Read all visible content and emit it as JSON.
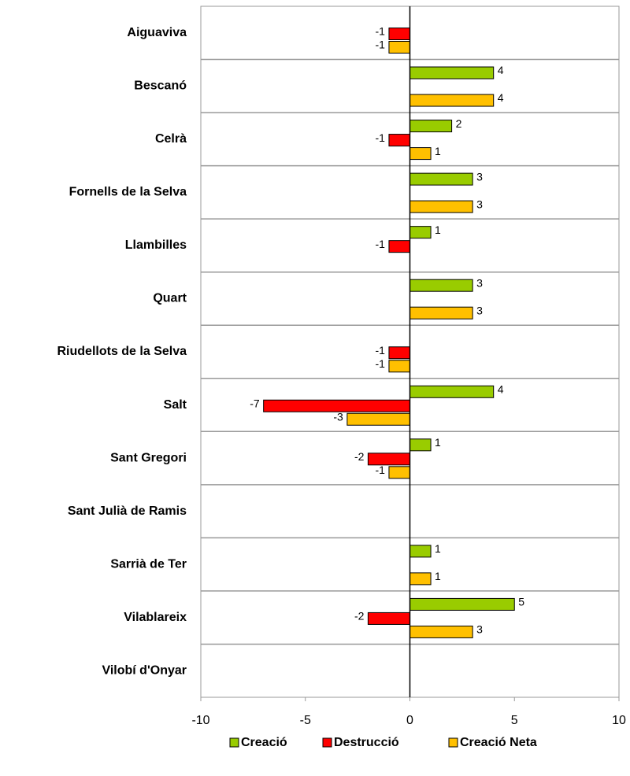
{
  "chart_data": {
    "type": "bar",
    "orientation": "horizontal",
    "categories": [
      "Aiguaviva",
      "Bescanó",
      "Celrà",
      "Fornells de la Selva",
      "Llambilles",
      "Quart",
      "Riudellots de la Selva",
      "Salt",
      "Sant Gregori",
      "Sant Julià de Ramis",
      "Sarrià de Ter",
      "Vilablareix",
      "Vilobí d'Onyar"
    ],
    "series": [
      {
        "name": "Creació",
        "color": "#99cc00",
        "values": [
          null,
          4,
          2,
          3,
          1,
          3,
          null,
          4,
          1,
          null,
          1,
          5,
          null
        ]
      },
      {
        "name": "Destrucció",
        "color": "#ff0000",
        "values": [
          -1,
          null,
          -1,
          null,
          -1,
          null,
          -1,
          -7,
          -2,
          null,
          null,
          -2,
          null
        ]
      },
      {
        "name": "Creació Neta",
        "color": "#ffc000",
        "values": [
          -1,
          4,
          1,
          3,
          null,
          3,
          -1,
          -3,
          -1,
          null,
          1,
          3,
          null
        ]
      }
    ],
    "xlim": [
      -10,
      10
    ],
    "xticks": [
      -10,
      -5,
      0,
      5,
      10
    ],
    "legend": "bottom"
  }
}
